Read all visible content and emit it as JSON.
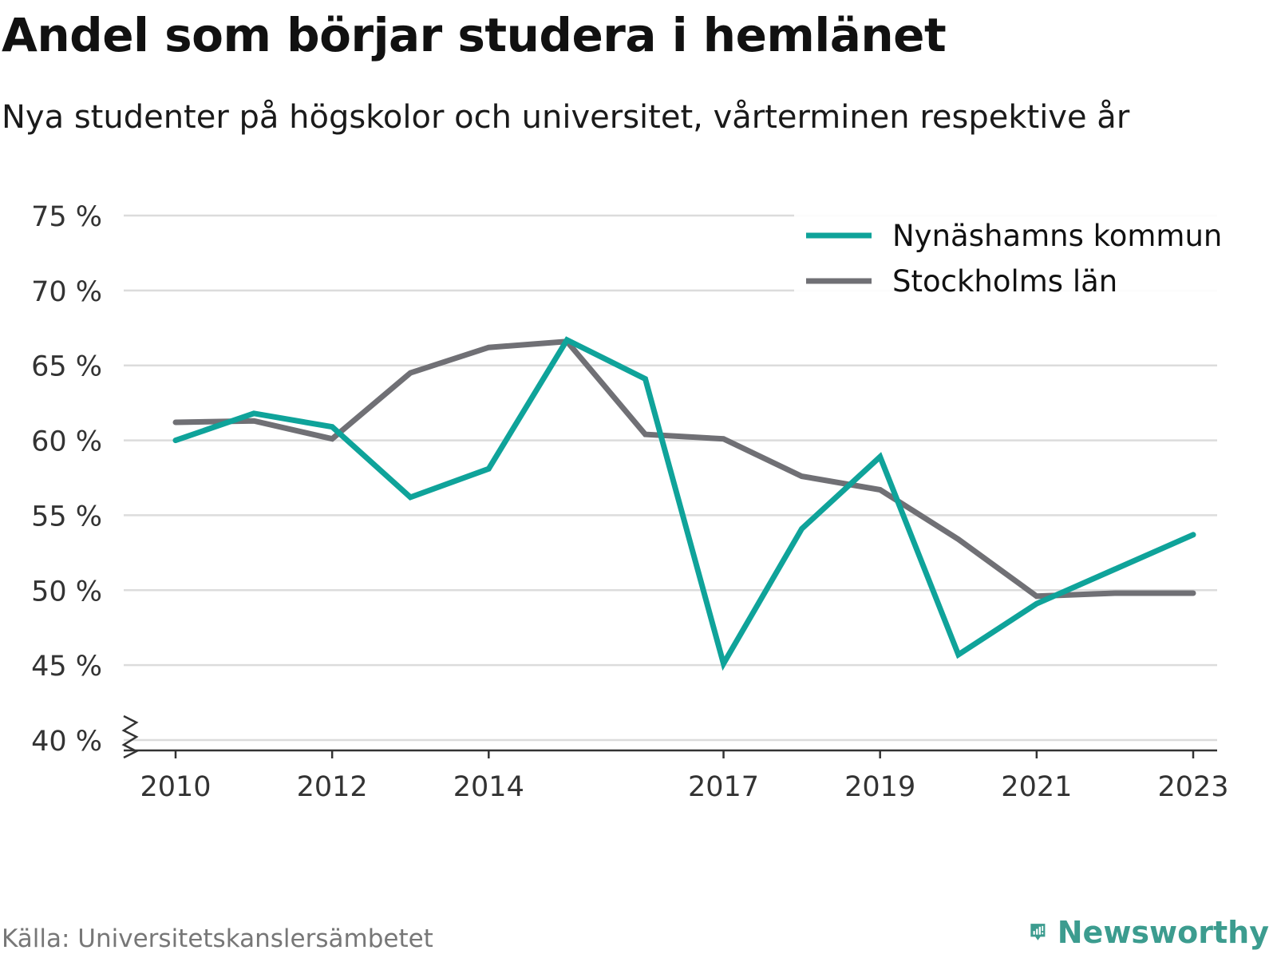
{
  "title": "Andel som börjar studera i hemlänet",
  "subtitle": "Nya studenter på högskolor och universitet, vårterminen respektive år",
  "source": "Källa: Universitetskanslersämbetet",
  "brand": {
    "name": "Newsworthy",
    "color": "#3c9c8f"
  },
  "chart_data": {
    "type": "line",
    "x": [
      2010,
      2011,
      2012,
      2013,
      2014,
      2015,
      2016,
      2017,
      2018,
      2019,
      2020,
      2021,
      2022,
      2023
    ],
    "x_tick_labels": [
      "2010",
      "2012",
      "2014",
      "2017",
      "2019",
      "2021",
      "2023"
    ],
    "y_tick_labels": [
      "40 %",
      "45 %",
      "50 %",
      "55 %",
      "60 %",
      "65 %",
      "70 %",
      "75 %"
    ],
    "y_ticks": [
      40,
      45,
      50,
      55,
      60,
      65,
      70,
      75
    ],
    "ylim": [
      40,
      75
    ],
    "grid": true,
    "legend_position": "top-right",
    "series": [
      {
        "name": "Nynäshamns kommun",
        "color": "#0fa39a",
        "values": [
          60.0,
          61.8,
          60.9,
          56.2,
          58.1,
          66.7,
          64.1,
          45.1,
          54.1,
          58.9,
          45.7,
          49.1,
          51.4,
          53.7
        ]
      },
      {
        "name": "Stockholms län",
        "color": "#707075",
        "values": [
          61.2,
          61.3,
          60.1,
          64.5,
          66.2,
          66.6,
          60.4,
          60.1,
          57.6,
          56.7,
          53.4,
          49.6,
          49.8,
          49.8
        ]
      }
    ]
  }
}
